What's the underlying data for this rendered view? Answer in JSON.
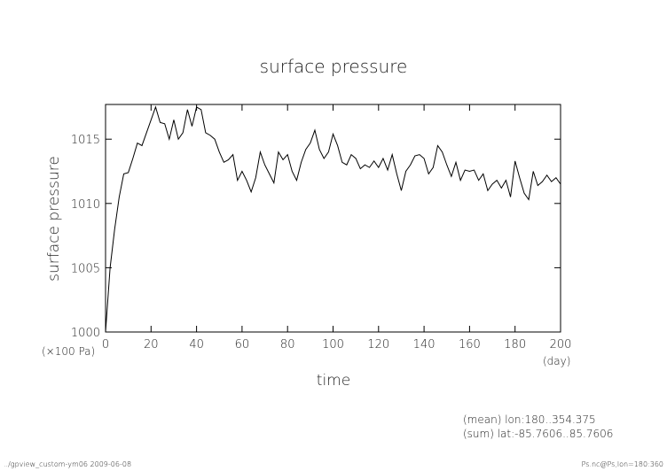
{
  "chart_data": {
    "type": "line",
    "title": "surface pressure",
    "x_label": "time",
    "y_label": "surface pressure",
    "x_unit": "(day)",
    "y_unit": "(×100 Pa)",
    "annotations": [
      "(mean) lon:180..354.375",
      "(sum) lat:-85.7606..85.7606"
    ],
    "footer_left": "../gpview_custom-ym06  2009-06-08",
    "footer_right": "Ps.nc@Ps,lon=180:360",
    "xlim": [
      0,
      200
    ],
    "xticks": [
      0,
      20,
      40,
      60,
      80,
      100,
      120,
      140,
      160,
      180,
      200
    ],
    "ylim": [
      1000,
      1017.7
    ],
    "yticks": [
      1000,
      1005,
      1010,
      1015
    ],
    "x": [
      0,
      2,
      4,
      6,
      8,
      10,
      12,
      14,
      16,
      18,
      20,
      22,
      24,
      26,
      28,
      30,
      32,
      34,
      36,
      38,
      40,
      42,
      44,
      46,
      48,
      50,
      52,
      54,
      56,
      58,
      60,
      62,
      64,
      66,
      68,
      70,
      72,
      74,
      76,
      78,
      80,
      82,
      84,
      86,
      88,
      90,
      92,
      94,
      96,
      98,
      100,
      102,
      104,
      106,
      108,
      110,
      112,
      114,
      116,
      118,
      120,
      122,
      124,
      126,
      128,
      130,
      132,
      134,
      136,
      138,
      140,
      142,
      144,
      146,
      148,
      150,
      152,
      154,
      156,
      158,
      160,
      162,
      164,
      166,
      168,
      170,
      172,
      174,
      176,
      178,
      180,
      182,
      184,
      186,
      188,
      190,
      192,
      194,
      196,
      198,
      200
    ],
    "series": [
      {
        "color": "#000000",
        "values": [
          1000,
          1005,
          1008,
          1010.5,
          1012.3,
          1012.4,
          1013.5,
          1014.7,
          1014.5,
          1015.5,
          1016.5,
          1017.5,
          1016.3,
          1016.2,
          1015,
          1016.5,
          1015,
          1015.5,
          1017.3,
          1016,
          1017.5,
          1017.3,
          1015.5,
          1015.3,
          1015,
          1014,
          1013.2,
          1013.4,
          1013.8,
          1011.8,
          1012.5,
          1011.8,
          1010.9,
          1012,
          1014,
          1013,
          1012.3,
          1011.6,
          1014,
          1013.4,
          1013.8,
          1012.5,
          1011.8,
          1013.2,
          1014.2,
          1014.7,
          1015.7,
          1014.2,
          1013.5,
          1014,
          1015.4,
          1014.5,
          1013.2,
          1013,
          1013.8,
          1013.5,
          1012.7,
          1013,
          1012.8,
          1013.3,
          1012.8,
          1013.5,
          1012.6,
          1013.8,
          1012.3,
          1011,
          1012.5,
          1013,
          1013.7,
          1013.8,
          1013.5,
          1012.3,
          1012.8,
          1014.5,
          1014,
          1013,
          1012.1,
          1013.2,
          1011.8,
          1012.6,
          1012.5,
          1012.6,
          1011.8,
          1012.3,
          1011,
          1011.5,
          1011.8,
          1011.2,
          1011.8,
          1010.5,
          1013.3,
          1012,
          1010.8,
          1010.3,
          1012.5,
          1011.4,
          1011.7,
          1012.2,
          1011.7,
          1012,
          1011.5
        ]
      }
    ]
  }
}
